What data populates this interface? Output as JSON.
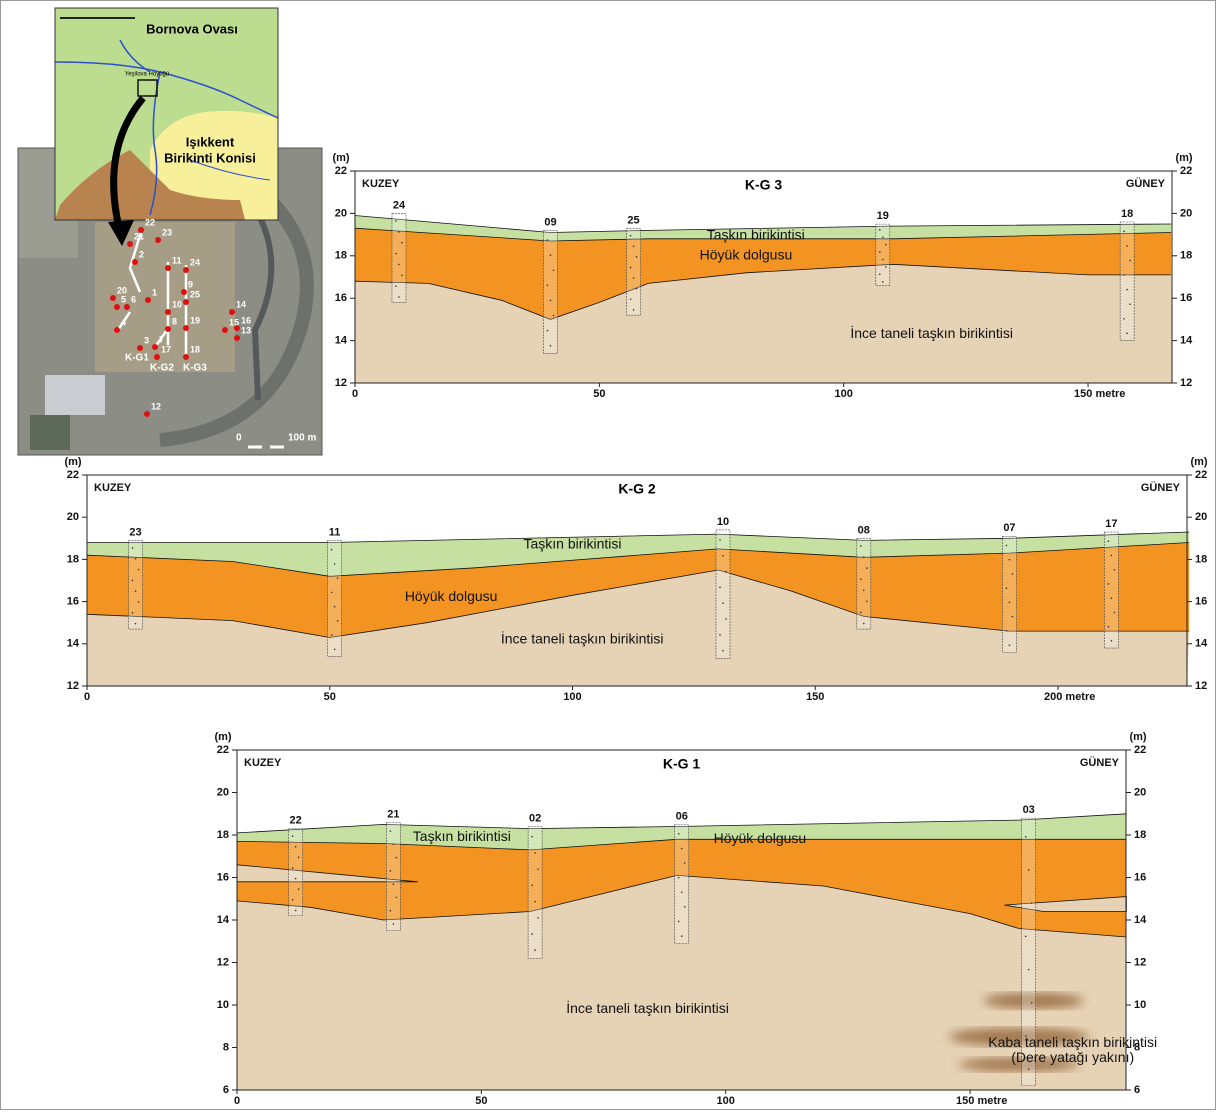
{
  "map": {
    "plain": "Bornova Ovası",
    "mound": "Yeşilova Höyüğü",
    "fan": [
      "Işıkkent",
      "Birikinti Konisi"
    ],
    "points": [
      "23",
      "22",
      "21",
      "2",
      "20",
      "5",
      "6",
      "1",
      "4",
      "3",
      "7",
      "8",
      "10",
      "11",
      "9",
      "24",
      "25",
      "19",
      "14",
      "15",
      "16",
      "13",
      "17",
      "18",
      "12"
    ],
    "lines": [
      "K-G1",
      "K-G2",
      "K-G3"
    ],
    "scale": [
      "0",
      "100 m"
    ]
  },
  "sections": [
    {
      "title": "K-G 3",
      "unit": "(m)",
      "north": "KUZEY",
      "south": "GÜNEY",
      "yticks": [
        "12",
        "14",
        "16",
        "18",
        "20",
        "22"
      ],
      "xticks": [
        "0",
        "50",
        "100",
        "150 metre"
      ],
      "boreholes": [
        "24",
        "09",
        "25",
        "19",
        "18"
      ],
      "layers": [
        "Taşkın birikintisi",
        "Höyük dolgusu",
        "İnce taneli taşkın birikintisi"
      ]
    },
    {
      "title": "K-G 2",
      "unit": "(m)",
      "north": "KUZEY",
      "south": "GÜNEY",
      "yticks": [
        "12",
        "14",
        "16",
        "18",
        "20",
        "22"
      ],
      "xticks": [
        "0",
        "50",
        "100",
        "150",
        "200 metre"
      ],
      "boreholes": [
        "23",
        "11",
        "10",
        "08",
        "07",
        "17"
      ],
      "layers": [
        "Taşkın birikintisi",
        "Höyük dolgusu",
        "İnce taneli taşkın birikintisi"
      ]
    },
    {
      "title": "K-G 1",
      "unit": "(m)",
      "north": "KUZEY",
      "south": "GÜNEY",
      "yticks": [
        "6",
        "8",
        "10",
        "12",
        "14",
        "16",
        "18",
        "20",
        "22"
      ],
      "xticks": [
        "0",
        "50",
        "100",
        "150 metre"
      ],
      "boreholes": [
        "22",
        "21",
        "02",
        "06",
        "03"
      ],
      "layers": [
        "Taşkın birikintisi",
        "Höyük dolgusu",
        "İnce taneli taşkın birikintisi"
      ],
      "coarse": [
        "Kaba taneli taşkın birikintisi",
        "(Dere yatağı yakını)"
      ]
    }
  ]
}
